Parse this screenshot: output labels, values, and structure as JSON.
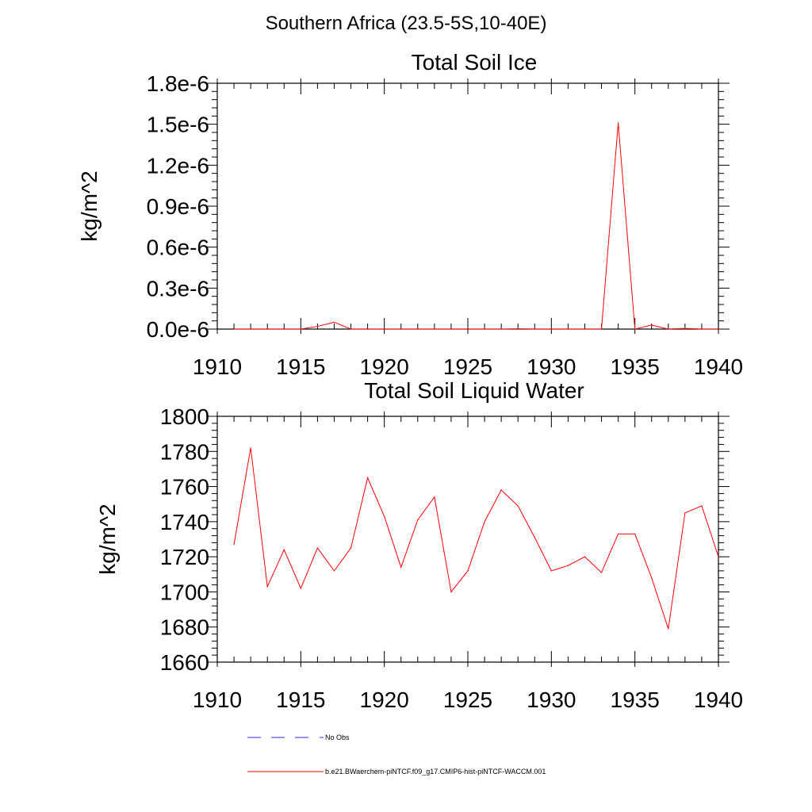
{
  "page_title": "Southern Africa (23.5-5S,10-40E)",
  "colors": {
    "series": "#ff0000",
    "obs": "#2b2bd6",
    "axis": "#000000"
  },
  "legend": {
    "obs_label": "No Obs",
    "model_label": "b.e21.BWaerchem-piNTCF.f09_g17.CMIP6-hist-piNTCF-WACCM.001"
  },
  "chart_data": [
    {
      "type": "line",
      "title": "Total Soil Ice",
      "ylabel": "kg/m^2",
      "xlim": [
        1910,
        1940
      ],
      "ylim": [
        0,
        1.8e-06
      ],
      "xticks": [
        1910,
        1915,
        1920,
        1925,
        1930,
        1935,
        1940
      ],
      "xtick_labels": [
        "1910",
        "1915",
        "1920",
        "1925",
        "1930",
        "1935",
        "1940"
      ],
      "yticks": [
        0,
        3e-07,
        6e-07,
        9e-07,
        1.2e-06,
        1.5e-06,
        1.8e-06
      ],
      "ytick_labels": [
        "0.0e-6",
        "0.3e-6",
        "0.6e-6",
        "0.9e-6",
        "1.2e-6",
        "1.5e-6",
        "1.8e-6"
      ],
      "grid": false,
      "x": [
        1911,
        1912,
        1913,
        1914,
        1915,
        1916,
        1917,
        1918,
        1919,
        1920,
        1921,
        1922,
        1923,
        1924,
        1925,
        1926,
        1927,
        1928,
        1929,
        1930,
        1931,
        1932,
        1933,
        1934,
        1935,
        1936,
        1937,
        1938,
        1939,
        1940
      ],
      "series": [
        {
          "values": [
            0,
            0,
            0,
            0,
            0,
            2e-08,
            5e-08,
            0,
            0,
            0,
            0,
            0,
            0,
            0,
            0,
            0,
            0,
            2e-09,
            0,
            0,
            0,
            0,
            0,
            1.51e-06,
            0,
            3e-08,
            0,
            5e-09,
            0,
            0
          ]
        }
      ]
    },
    {
      "type": "line",
      "title": "Total Soil Liquid Water",
      "ylabel": "kg/m^2",
      "xlim": [
        1910,
        1940
      ],
      "ylim": [
        1660,
        1800
      ],
      "xticks": [
        1910,
        1915,
        1920,
        1925,
        1930,
        1935,
        1940
      ],
      "xtick_labels": [
        "1910",
        "1915",
        "1920",
        "1925",
        "1930",
        "1935",
        "1940"
      ],
      "yticks": [
        1660,
        1680,
        1700,
        1720,
        1740,
        1760,
        1780,
        1800
      ],
      "ytick_labels": [
        "1660",
        "1680",
        "1700",
        "1720",
        "1740",
        "1760",
        "1780",
        "1800"
      ],
      "grid": false,
      "x": [
        1911,
        1912,
        1913,
        1914,
        1915,
        1916,
        1917,
        1918,
        1919,
        1920,
        1921,
        1922,
        1923,
        1924,
        1925,
        1926,
        1927,
        1928,
        1929,
        1930,
        1931,
        1932,
        1933,
        1934,
        1935,
        1936,
        1937,
        1938,
        1939,
        1940
      ],
      "series": [
        {
          "values": [
            1727,
            1782,
            1703,
            1724,
            1702,
            1725,
            1712,
            1725,
            1765,
            1743,
            1714,
            1741,
            1754,
            1700,
            1712,
            1740,
            1758,
            1749,
            1731,
            1712,
            1715,
            1720,
            1711,
            1733,
            1733,
            1708,
            1679,
            1745,
            1749,
            1720
          ]
        }
      ]
    }
  ]
}
